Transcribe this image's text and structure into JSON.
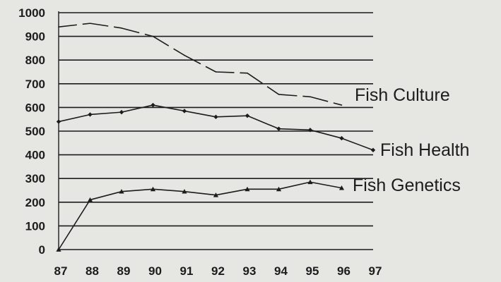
{
  "chart_data": {
    "type": "line",
    "title": "",
    "xlabel": "",
    "ylabel": "",
    "categories": [
      "87",
      "88",
      "89",
      "90",
      "91",
      "92",
      "93",
      "94",
      "95",
      "96",
      "97"
    ],
    "ylim": [
      0,
      1000
    ],
    "y_ticks": [
      1000,
      900,
      800,
      700,
      600,
      500,
      400,
      300,
      200,
      100,
      0
    ],
    "grid": true,
    "legend": "series names printed at the right end of each line",
    "series": [
      {
        "name": "Fish Culture",
        "values": [
          940,
          955,
          935,
          900,
          820,
          750,
          745,
          655,
          645,
          610,
          null
        ],
        "line_style": "dashed",
        "marker": "none"
      },
      {
        "name": "Fish Health",
        "values": [
          540,
          570,
          580,
          610,
          585,
          560,
          565,
          510,
          505,
          470,
          420
        ],
        "line_style": "solid",
        "marker": "diamond"
      },
      {
        "name": "Fish Genetics",
        "values": [
          0,
          210,
          245,
          255,
          245,
          230,
          255,
          255,
          285,
          260,
          null
        ],
        "line_style": "solid",
        "marker": "triangle"
      }
    ]
  },
  "colors": {
    "background": "#e6e6e2",
    "ink": "#1c1c1c"
  }
}
